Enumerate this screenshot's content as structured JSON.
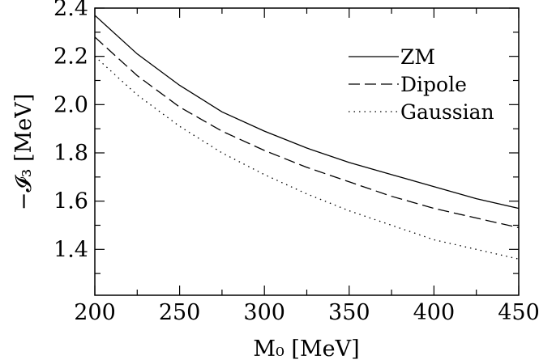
{
  "chart_data": {
    "type": "line",
    "xlabel": "M₀ [MeV]",
    "ylabel": "−𝓘₃ [MeV]",
    "xlim": [
      200,
      450
    ],
    "ylim": [
      1.21,
      2.4
    ],
    "x_ticks": [
      200,
      250,
      300,
      350,
      400,
      450
    ],
    "x_tick_labels": [
      "200",
      "250",
      "300",
      "350",
      "400",
      "450"
    ],
    "y_ticks": [
      1.4,
      1.6,
      1.8,
      2.0,
      2.2,
      2.4
    ],
    "y_tick_labels": [
      "1.4",
      "1.6",
      "1.8",
      "2.0",
      "2.2",
      "2.4"
    ],
    "x_minor_step": 25,
    "y_minor_step": 0.1,
    "grid": false,
    "legend_position": "top-right",
    "x": [
      200,
      225,
      250,
      275,
      300,
      325,
      350,
      375,
      400,
      425,
      450
    ],
    "series": [
      {
        "name": "ZM",
        "style": "solid",
        "values": [
          2.37,
          2.21,
          2.08,
          1.97,
          1.89,
          1.82,
          1.76,
          1.71,
          1.66,
          1.61,
          1.57
        ]
      },
      {
        "name": "Dipole",
        "style": "dashed",
        "values": [
          2.28,
          2.12,
          1.99,
          1.89,
          1.81,
          1.74,
          1.68,
          1.62,
          1.57,
          1.53,
          1.49
        ]
      },
      {
        "name": "Gaussian",
        "style": "dotted",
        "values": [
          2.2,
          2.04,
          1.91,
          1.8,
          1.71,
          1.63,
          1.56,
          1.5,
          1.44,
          1.4,
          1.36
        ]
      }
    ]
  }
}
